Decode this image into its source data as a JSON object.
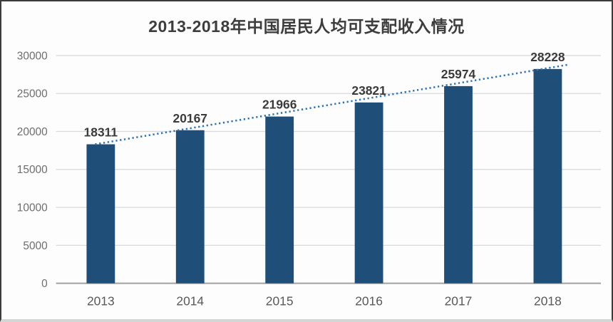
{
  "chart_data": {
    "type": "bar",
    "title": "2013-2018年中国居民人均可支配收入情况",
    "categories": [
      "2013",
      "2014",
      "2015",
      "2016",
      "2017",
      "2018"
    ],
    "values": [
      18311,
      20167,
      21966,
      23821,
      25974,
      28228
    ],
    "xlabel": "",
    "ylabel": "",
    "ylim": [
      0,
      30000
    ],
    "yticks": [
      0,
      5000,
      10000,
      15000,
      20000,
      25000,
      30000
    ],
    "grid": "horizontal",
    "legend": "none",
    "show_data_labels": true,
    "bar_color": "#1F4E79",
    "trendline": {
      "type": "linear",
      "style": "dotted",
      "color": "#2E75B6"
    },
    "colors": {
      "title_text": "#3D3D3D",
      "ytick_labels": "#6E6E6E",
      "xtick_labels": "#595959",
      "data_labels": "#3B3B3B",
      "gridline": "#D9D9D9",
      "axis_line": "#A6A6A6",
      "background": "#FDFDFD"
    }
  }
}
